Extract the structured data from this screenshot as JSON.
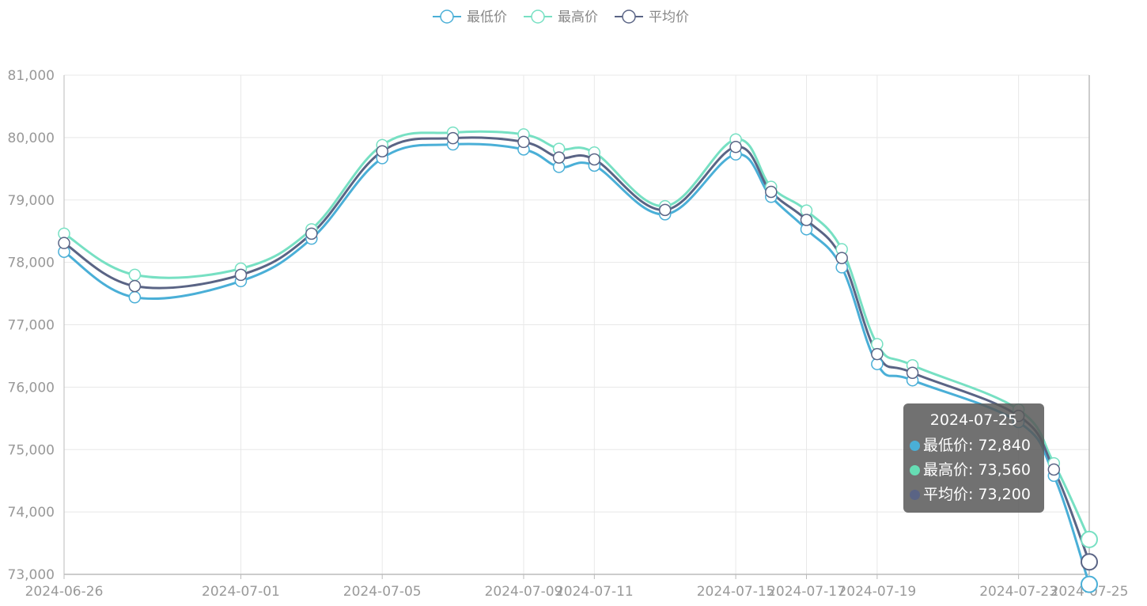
{
  "chart_data": {
    "type": "line",
    "legend_position": "top-center",
    "grid": true,
    "dates": [
      "2024-06-26",
      "2024-06-28",
      "2024-07-01",
      "2024-07-03",
      "2024-07-05",
      "2024-07-07",
      "2024-07-09",
      "2024-07-10",
      "2024-07-11",
      "2024-07-13",
      "2024-07-15",
      "2024-07-16",
      "2024-07-17",
      "2024-07-18",
      "2024-07-19",
      "2024-07-20",
      "2024-07-23",
      "2024-07-24",
      "2024-07-25"
    ],
    "x_ticks": [
      "2024-06-26",
      "2024-07-01",
      "2024-07-05",
      "2024-07-09",
      "2024-07-11",
      "2024-07-15",
      "2024-07-17",
      "2024-07-19",
      "2024-07-23",
      "2024-07-25"
    ],
    "y_ticks": [
      "73,000",
      "74,000",
      "75,000",
      "76,000",
      "77,000",
      "78,000",
      "79,000",
      "80,000",
      "81,000"
    ],
    "ylim": [
      73000,
      81000
    ],
    "series": [
      {
        "name": "最低价",
        "color": "#4aafd7",
        "values": [
          78170,
          77440,
          77700,
          78380,
          79670,
          79890,
          79810,
          79530,
          79550,
          78770,
          79730,
          79050,
          78530,
          77920,
          76370,
          76110,
          75440,
          74580,
          72840
        ]
      },
      {
        "name": "最高价",
        "color": "#77e0c3",
        "values": [
          78460,
          77800,
          77900,
          78530,
          79880,
          80080,
          80050,
          79820,
          79760,
          78900,
          79970,
          79210,
          78830,
          78210,
          76690,
          76350,
          75640,
          74780,
          73560
        ]
      },
      {
        "name": "平均价",
        "color": "#5a6485",
        "values": [
          78310,
          77620,
          77800,
          78460,
          79780,
          79990,
          79930,
          79680,
          79650,
          78840,
          79850,
          79130,
          78680,
          78070,
          76530,
          76230,
          75540,
          74680,
          73200
        ]
      }
    ],
    "tooltip": {
      "title": "2024-07-25",
      "rows": [
        {
          "label": "最低价: 72,840",
          "color": "#4aafd7"
        },
        {
          "label": "最高价: 73,560",
          "color": "#66ddb4"
        },
        {
          "label": "平均价: 73,200",
          "color": "#5a6485"
        }
      ]
    }
  }
}
